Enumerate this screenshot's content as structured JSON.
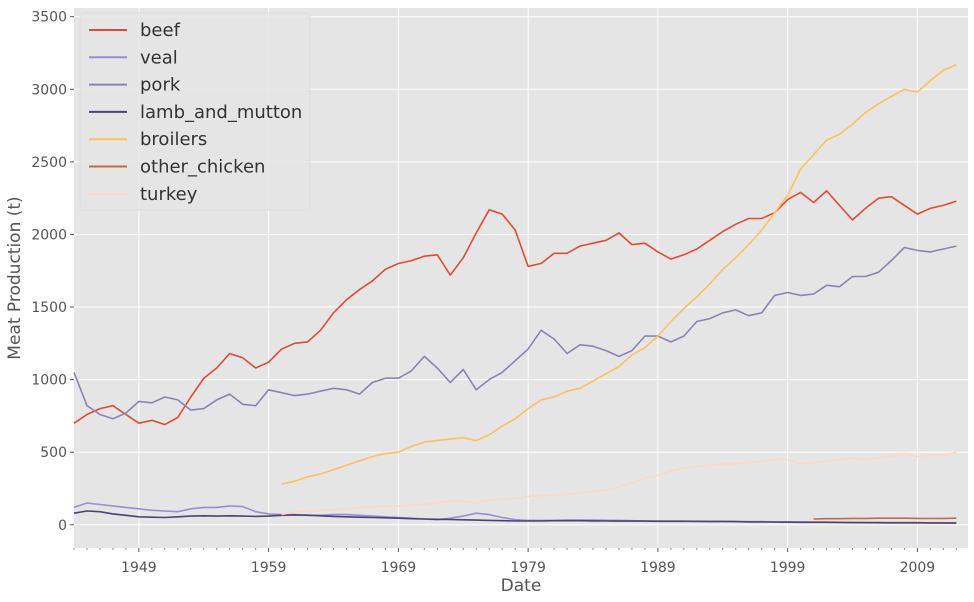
{
  "chart_data": {
    "type": "line",
    "xlabel": "Date",
    "ylabel": "Meat Production (t)",
    "xlim": [
      1944,
      2012.9
    ],
    "ylim": [
      -160,
      3560
    ],
    "x_ticks": [
      1949,
      1959,
      1969,
      1979,
      1989,
      1999,
      2009
    ],
    "y_ticks": [
      0,
      500,
      1000,
      1500,
      2000,
      2500,
      3000,
      3500
    ],
    "grid": true,
    "legend_position": "top-left",
    "x": [
      1944,
      1945,
      1946,
      1947,
      1948,
      1949,
      1950,
      1951,
      1952,
      1953,
      1954,
      1955,
      1956,
      1957,
      1958,
      1959,
      1960,
      1961,
      1962,
      1963,
      1964,
      1965,
      1966,
      1967,
      1968,
      1969,
      1970,
      1971,
      1972,
      1973,
      1974,
      1975,
      1976,
      1977,
      1978,
      1979,
      1980,
      1981,
      1982,
      1983,
      1984,
      1985,
      1986,
      1987,
      1988,
      1989,
      1990,
      1991,
      1992,
      1993,
      1994,
      1995,
      1996,
      1997,
      1998,
      1999,
      2000,
      2001,
      2002,
      2003,
      2004,
      2005,
      2006,
      2007,
      2008,
      2009,
      2010,
      2011,
      2012
    ],
    "series": [
      {
        "name": "beef",
        "color": "#E24A33",
        "values": [
          700,
          760,
          800,
          820,
          760,
          700,
          720,
          690,
          740,
          880,
          1010,
          1080,
          1180,
          1150,
          1080,
          1120,
          1210,
          1250,
          1260,
          1340,
          1460,
          1550,
          1620,
          1680,
          1760,
          1800,
          1820,
          1850,
          1860,
          1720,
          1840,
          2010,
          2170,
          2140,
          2030,
          1780,
          1800,
          1870,
          1870,
          1920,
          1940,
          1960,
          2010,
          1930,
          1940,
          1880,
          1830,
          1860,
          1900,
          1960,
          2020,
          2070,
          2110,
          2110,
          2150,
          2240,
          2290,
          2220,
          2300,
          2200,
          2100,
          2180,
          2250,
          2260,
          2200,
          2140,
          2180,
          2200,
          2230
        ]
      },
      {
        "name": "veal",
        "color": "#988ED5",
        "values": [
          120,
          150,
          140,
          130,
          120,
          110,
          100,
          95,
          90,
          110,
          120,
          120,
          130,
          125,
          90,
          75,
          70,
          70,
          65,
          65,
          70,
          70,
          65,
          60,
          55,
          50,
          45,
          40,
          35,
          45,
          60,
          80,
          70,
          50,
          35,
          30,
          30,
          30,
          32,
          32,
          32,
          31,
          30,
          28,
          26,
          25,
          25,
          25,
          23,
          22,
          22,
          22,
          22,
          22,
          20,
          20,
          20,
          19,
          19,
          18,
          15,
          14,
          13,
          13,
          13,
          12,
          12,
          12,
          11
        ]
      },
      {
        "name": "pork",
        "color": "#8a84b6",
        "values": [
          1050,
          820,
          760,
          730,
          770,
          850,
          840,
          880,
          860,
          790,
          800,
          860,
          900,
          830,
          820,
          930,
          910,
          890,
          900,
          920,
          940,
          930,
          900,
          980,
          1010,
          1010,
          1060,
          1160,
          1080,
          980,
          1070,
          930,
          1000,
          1050,
          1130,
          1210,
          1340,
          1280,
          1180,
          1240,
          1230,
          1200,
          1160,
          1200,
          1300,
          1300,
          1260,
          1300,
          1400,
          1420,
          1460,
          1480,
          1440,
          1460,
          1580,
          1600,
          1580,
          1590,
          1650,
          1640,
          1710,
          1710,
          1740,
          1820,
          1910,
          1890,
          1880,
          1900,
          1920
        ]
      },
      {
        "name": "lamb_and_mutton",
        "color": "#4a4470",
        "values": [
          80,
          95,
          90,
          75,
          65,
          55,
          52,
          50,
          55,
          60,
          62,
          60,
          62,
          60,
          58,
          60,
          65,
          68,
          66,
          62,
          58,
          55,
          52,
          50,
          48,
          45,
          42,
          40,
          38,
          36,
          34,
          32,
          30,
          28,
          26,
          26,
          26,
          28,
          28,
          28,
          27,
          26,
          25,
          25,
          25,
          24,
          24,
          24,
          24,
          23,
          23,
          22,
          20,
          19,
          19,
          18,
          17,
          17,
          17,
          16,
          15,
          15,
          15,
          14,
          14,
          14,
          13,
          13,
          13
        ]
      },
      {
        "name": "broilers",
        "color": "#FBC15E",
        "values": [
          null,
          null,
          null,
          null,
          null,
          null,
          null,
          null,
          null,
          null,
          null,
          null,
          null,
          null,
          null,
          null,
          280,
          300,
          330,
          350,
          380,
          410,
          440,
          470,
          490,
          500,
          540,
          570,
          580,
          590,
          600,
          580,
          620,
          680,
          730,
          800,
          860,
          880,
          920,
          940,
          990,
          1040,
          1090,
          1170,
          1220,
          1300,
          1400,
          1490,
          1570,
          1660,
          1760,
          1840,
          1930,
          2030,
          2150,
          2270,
          2450,
          2550,
          2650,
          2690,
          2760,
          2840,
          2900,
          2950,
          3000,
          2980,
          3060,
          3130,
          3170
        ]
      },
      {
        "name": "other_chicken",
        "color": "#c06c4c",
        "values": [
          null,
          null,
          null,
          null,
          null,
          null,
          null,
          null,
          null,
          null,
          null,
          null,
          null,
          null,
          null,
          null,
          null,
          null,
          null,
          null,
          null,
          null,
          null,
          null,
          null,
          null,
          null,
          null,
          null,
          null,
          null,
          null,
          null,
          null,
          null,
          null,
          null,
          null,
          null,
          null,
          null,
          null,
          null,
          null,
          null,
          null,
          null,
          null,
          null,
          null,
          null,
          null,
          null,
          null,
          null,
          null,
          null,
          40,
          42,
          42,
          44,
          44,
          45,
          45,
          45,
          44,
          43,
          44,
          45
        ]
      },
      {
        "name": "turkey",
        "color": "#FFD7C4",
        "values": [
          null,
          null,
          null,
          null,
          null,
          null,
          null,
          null,
          null,
          null,
          null,
          null,
          null,
          null,
          null,
          null,
          70,
          90,
          95,
          100,
          105,
          110,
          120,
          125,
          130,
          130,
          135,
          140,
          150,
          160,
          165,
          150,
          170,
          175,
          180,
          195,
          200,
          205,
          210,
          220,
          230,
          240,
          260,
          290,
          320,
          340,
          370,
          390,
          400,
          410,
          420,
          420,
          430,
          440,
          450,
          450,
          420,
          430,
          440,
          450,
          460,
          450,
          460,
          470,
          490,
          470,
          480,
          480,
          500
        ]
      }
    ]
  }
}
